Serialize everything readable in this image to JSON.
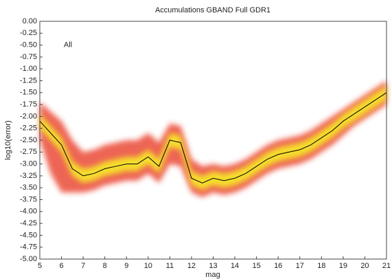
{
  "chart_data": {
    "type": "density-line",
    "title": "Accumulations GBAND    Full GDR1",
    "annotation": "All",
    "annotation_at": [
      6.3,
      -0.5
    ],
    "x_label": "mag",
    "y_label": "log10(error)",
    "xlim": [
      5,
      21
    ],
    "ylim": [
      -5,
      0
    ],
    "xticks": [
      5,
      6,
      7,
      8,
      9,
      10,
      11,
      12,
      13,
      14,
      15,
      16,
      17,
      18,
      19,
      20,
      21
    ],
    "yticks": [
      {
        "value": 0,
        "label": "0.00"
      },
      {
        "value": -0.25,
        "label": "-0.25"
      },
      {
        "value": -0.5,
        "label": "-0.50"
      },
      {
        "value": -0.75,
        "label": "-0.75"
      },
      {
        "value": -1,
        "label": "-1.00"
      },
      {
        "value": -1.25,
        "label": "-1.25"
      },
      {
        "value": -1.5,
        "label": "-1.50"
      },
      {
        "value": -1.75,
        "label": "-1.75"
      },
      {
        "value": -2,
        "label": "-2.00"
      },
      {
        "value": -2.25,
        "label": "-2.25"
      },
      {
        "value": -2.5,
        "label": "-2.50"
      },
      {
        "value": -2.75,
        "label": "-2.75"
      },
      {
        "value": -3,
        "label": "-3.00"
      },
      {
        "value": -3.25,
        "label": "-3.25"
      },
      {
        "value": -3.5,
        "label": "-3.50"
      },
      {
        "value": -3.75,
        "label": "-3.75"
      },
      {
        "value": -4,
        "label": "-4.00"
      },
      {
        "value": -4.25,
        "label": "-4.25"
      },
      {
        "value": -4.5,
        "label": "-4.50"
      },
      {
        "value": -4.75,
        "label": "-4.75"
      },
      {
        "value": -5,
        "label": "-5.00"
      }
    ],
    "x": [
      5,
      5.5,
      6,
      6.5,
      7,
      7.5,
      8,
      8.5,
      9,
      9.5,
      10,
      10.5,
      11,
      11.5,
      12,
      12.5,
      13,
      13.5,
      14,
      14.5,
      15,
      15.5,
      16,
      16.5,
      17,
      17.5,
      18,
      18.5,
      19,
      19.5,
      20,
      20.5,
      21
    ],
    "bands": [
      {
        "color": "#e8301e",
        "upper": [
          -1.7,
          -1.9,
          -2.1,
          -2.5,
          -2.75,
          -2.7,
          -2.6,
          -2.55,
          -2.5,
          -2.5,
          -2.35,
          -2.55,
          -2.15,
          -2.2,
          -2.9,
          -3.05,
          -3.0,
          -3.05,
          -3.0,
          -2.9,
          -2.75,
          -2.6,
          -2.5,
          -2.45,
          -2.4,
          -2.3,
          -2.15,
          -2.0,
          -1.85,
          -1.7,
          -1.55,
          -1.4,
          -1.25
        ],
        "lower": [
          -2.5,
          -3.2,
          -3.6,
          -3.6,
          -3.6,
          -3.55,
          -3.45,
          -3.4,
          -3.35,
          -3.35,
          -3.2,
          -3.4,
          -3.0,
          -3.05,
          -3.6,
          -3.7,
          -3.6,
          -3.65,
          -3.6,
          -3.5,
          -3.35,
          -3.2,
          -3.1,
          -3.05,
          -3.0,
          -2.9,
          -2.75,
          -2.6,
          -2.4,
          -2.2,
          -2.05,
          -1.9,
          -1.75
        ]
      },
      {
        "color": "#f6e42a",
        "upper": [
          -1.95,
          -2.2,
          -2.45,
          -2.95,
          -3.1,
          -3.05,
          -2.95,
          -2.9,
          -2.85,
          -2.85,
          -2.7,
          -2.9,
          -2.35,
          -2.4,
          -3.15,
          -3.25,
          -3.15,
          -3.2,
          -3.15,
          -3.05,
          -2.9,
          -2.75,
          -2.65,
          -2.6,
          -2.55,
          -2.45,
          -2.3,
          -2.15,
          -1.95,
          -1.8,
          -1.65,
          -1.5,
          -1.35
        ],
        "lower": [
          -2.25,
          -2.5,
          -2.75,
          -3.25,
          -3.4,
          -3.35,
          -3.25,
          -3.2,
          -3.15,
          -3.15,
          -3.0,
          -3.2,
          -2.65,
          -2.7,
          -3.45,
          -3.55,
          -3.45,
          -3.5,
          -3.45,
          -3.35,
          -3.2,
          -3.05,
          -2.95,
          -2.9,
          -2.85,
          -2.75,
          -2.6,
          -2.45,
          -2.25,
          -2.1,
          -1.95,
          -1.8,
          -1.65
        ]
      }
    ],
    "series": [
      {
        "color": "#000000",
        "values": [
          -2.1,
          -2.35,
          -2.6,
          -3.1,
          -3.25,
          -3.2,
          -3.1,
          -3.05,
          -3.0,
          -3.0,
          -2.85,
          -3.05,
          -2.5,
          -2.55,
          -3.3,
          -3.4,
          -3.3,
          -3.35,
          -3.3,
          -3.2,
          -3.05,
          -2.9,
          -2.8,
          -2.75,
          -2.7,
          -2.6,
          -2.45,
          -2.3,
          -2.1,
          -1.95,
          -1.8,
          -1.65,
          -1.5
        ]
      }
    ]
  }
}
